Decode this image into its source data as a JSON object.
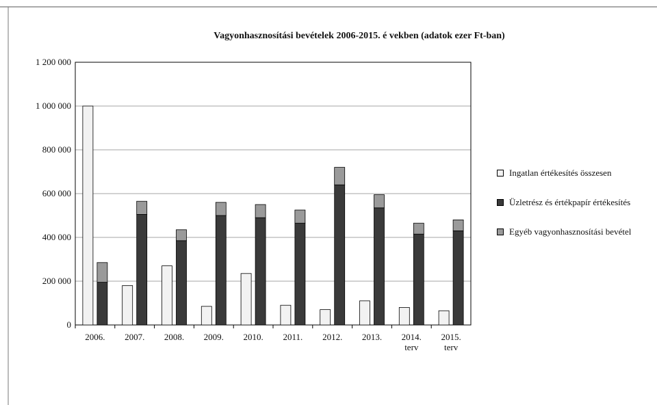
{
  "chart_data": {
    "type": "bar",
    "title": "Vagyonhasznosítási bevételek 2006-2015. é vekben (adatok ezer Ft-ban)",
    "categories": [
      "2006.",
      "2007.",
      "2008.",
      "2009.",
      "2010.",
      "2011.",
      "2012.",
      "2013.",
      "2014.\nterv",
      "2015.\nterv"
    ],
    "series": [
      {
        "name": "Ingatlan értékesítés összesen",
        "color": "#f2f2f2",
        "stack": "a",
        "values": [
          1000000,
          180000,
          270000,
          85000,
          235000,
          90000,
          70000,
          110000,
          80000,
          65000
        ]
      },
      {
        "name": "Üzletrész és értékpapír értékesítés",
        "color": "#3a3a3a",
        "stack": "b",
        "values": [
          195000,
          505000,
          385000,
          500000,
          490000,
          465000,
          640000,
          535000,
          415000,
          430000
        ]
      },
      {
        "name": "Egyéb vagyonhasznosítási bevétel",
        "color": "#9a9a9a",
        "stack": "b",
        "values": [
          90000,
          60000,
          50000,
          60000,
          60000,
          60000,
          80000,
          60000,
          50000,
          50000
        ]
      }
    ],
    "ylim": [
      0,
      1200000
    ],
    "yticks": [
      {
        "value": 0,
        "label": "0"
      },
      {
        "value": 200000,
        "label": "200 000"
      },
      {
        "value": 400000,
        "label": "400 000"
      },
      {
        "value": 600000,
        "label": "600 000"
      },
      {
        "value": 800000,
        "label": "800 000"
      },
      {
        "value": 1000000,
        "label": "1 000 000"
      },
      {
        "value": 1200000,
        "label": "1 200 000"
      }
    ],
    "grid": true
  }
}
